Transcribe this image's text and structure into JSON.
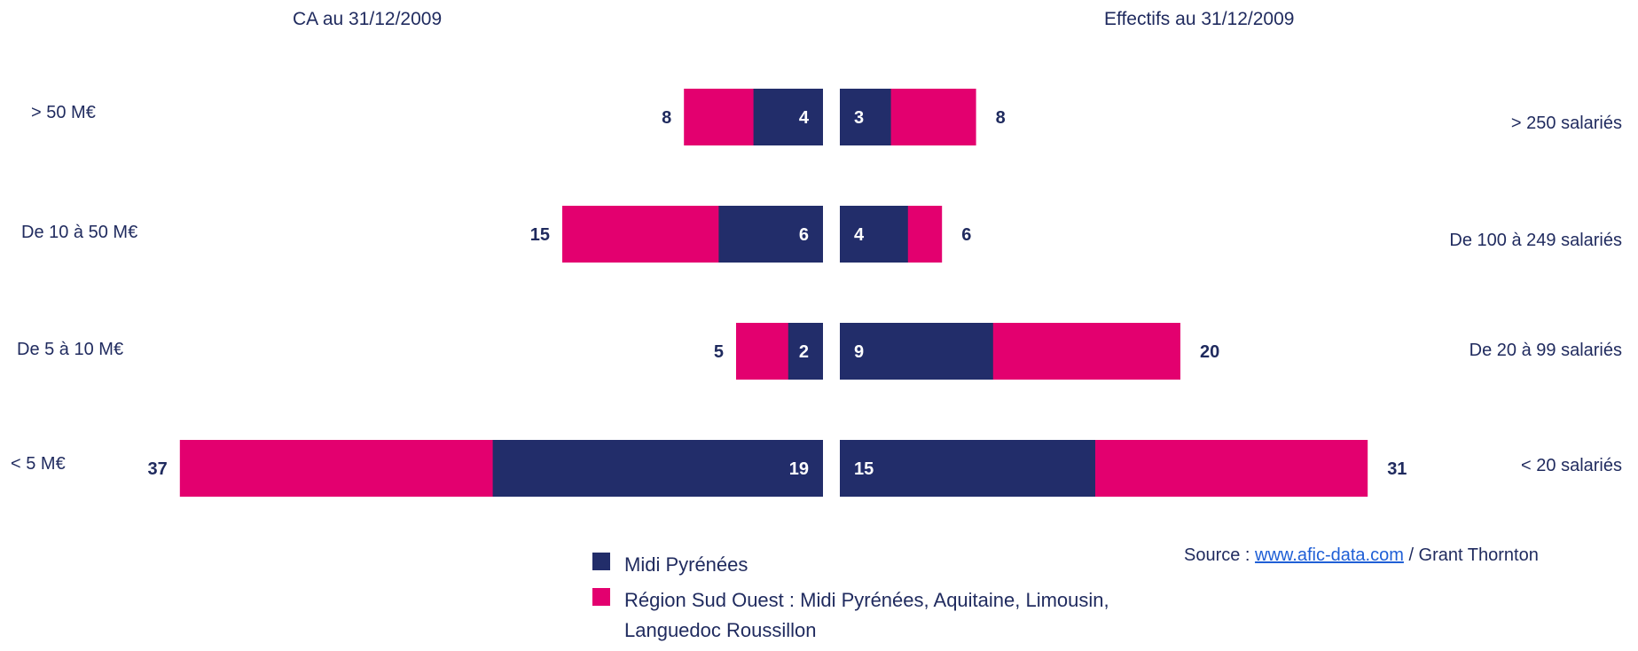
{
  "colors": {
    "midi": "#222d6a",
    "sud_ouest": "#e3006f",
    "text": "#1f2a5e"
  },
  "chart_data": [
    {
      "type": "bar",
      "orientation": "horizontal",
      "stacking": "overlay",
      "title": "CA au 31/12/2009",
      "categories": [
        "> 50 M€",
        "De 10 à 50 M€",
        "De 5 à 10 M€",
        "< 5 M€"
      ],
      "series": [
        {
          "name": "Midi Pyrénées",
          "values": [
            4,
            6,
            2,
            19
          ]
        },
        {
          "name": "Région Sud Ouest : Midi Pyrénées, Aquitaine, Limousin, Languedoc Roussillon",
          "values": [
            8,
            15,
            5,
            37
          ]
        }
      ],
      "xlim": [
        0,
        37
      ],
      "direction": "right-to-left"
    },
    {
      "type": "bar",
      "orientation": "horizontal",
      "stacking": "overlay",
      "title": "Effectifs au 31/12/2009",
      "categories": [
        "> 250 salariés",
        "De 100 à 249 salariés",
        "De 20 à 99 salariés",
        "< 20 salariés"
      ],
      "series": [
        {
          "name": "Midi Pyrénées",
          "values": [
            3,
            4,
            9,
            15
          ]
        },
        {
          "name": "Région Sud Ouest : Midi Pyrénées, Aquitaine, Limousin, Languedoc Roussillon",
          "values": [
            8,
            6,
            20,
            31
          ]
        }
      ],
      "xlim": [
        0,
        31
      ],
      "direction": "left-to-right"
    }
  ],
  "legend": {
    "midi_label": "Midi Pyrénées",
    "sud_ouest_label": "Région Sud Ouest : Midi Pyrénées, Aquitaine, Limousin, Languedoc Roussillon"
  },
  "source": {
    "prefix": "Source : ",
    "link_text": "www.afic-data.com",
    "suffix": " / Grant Thornton"
  }
}
